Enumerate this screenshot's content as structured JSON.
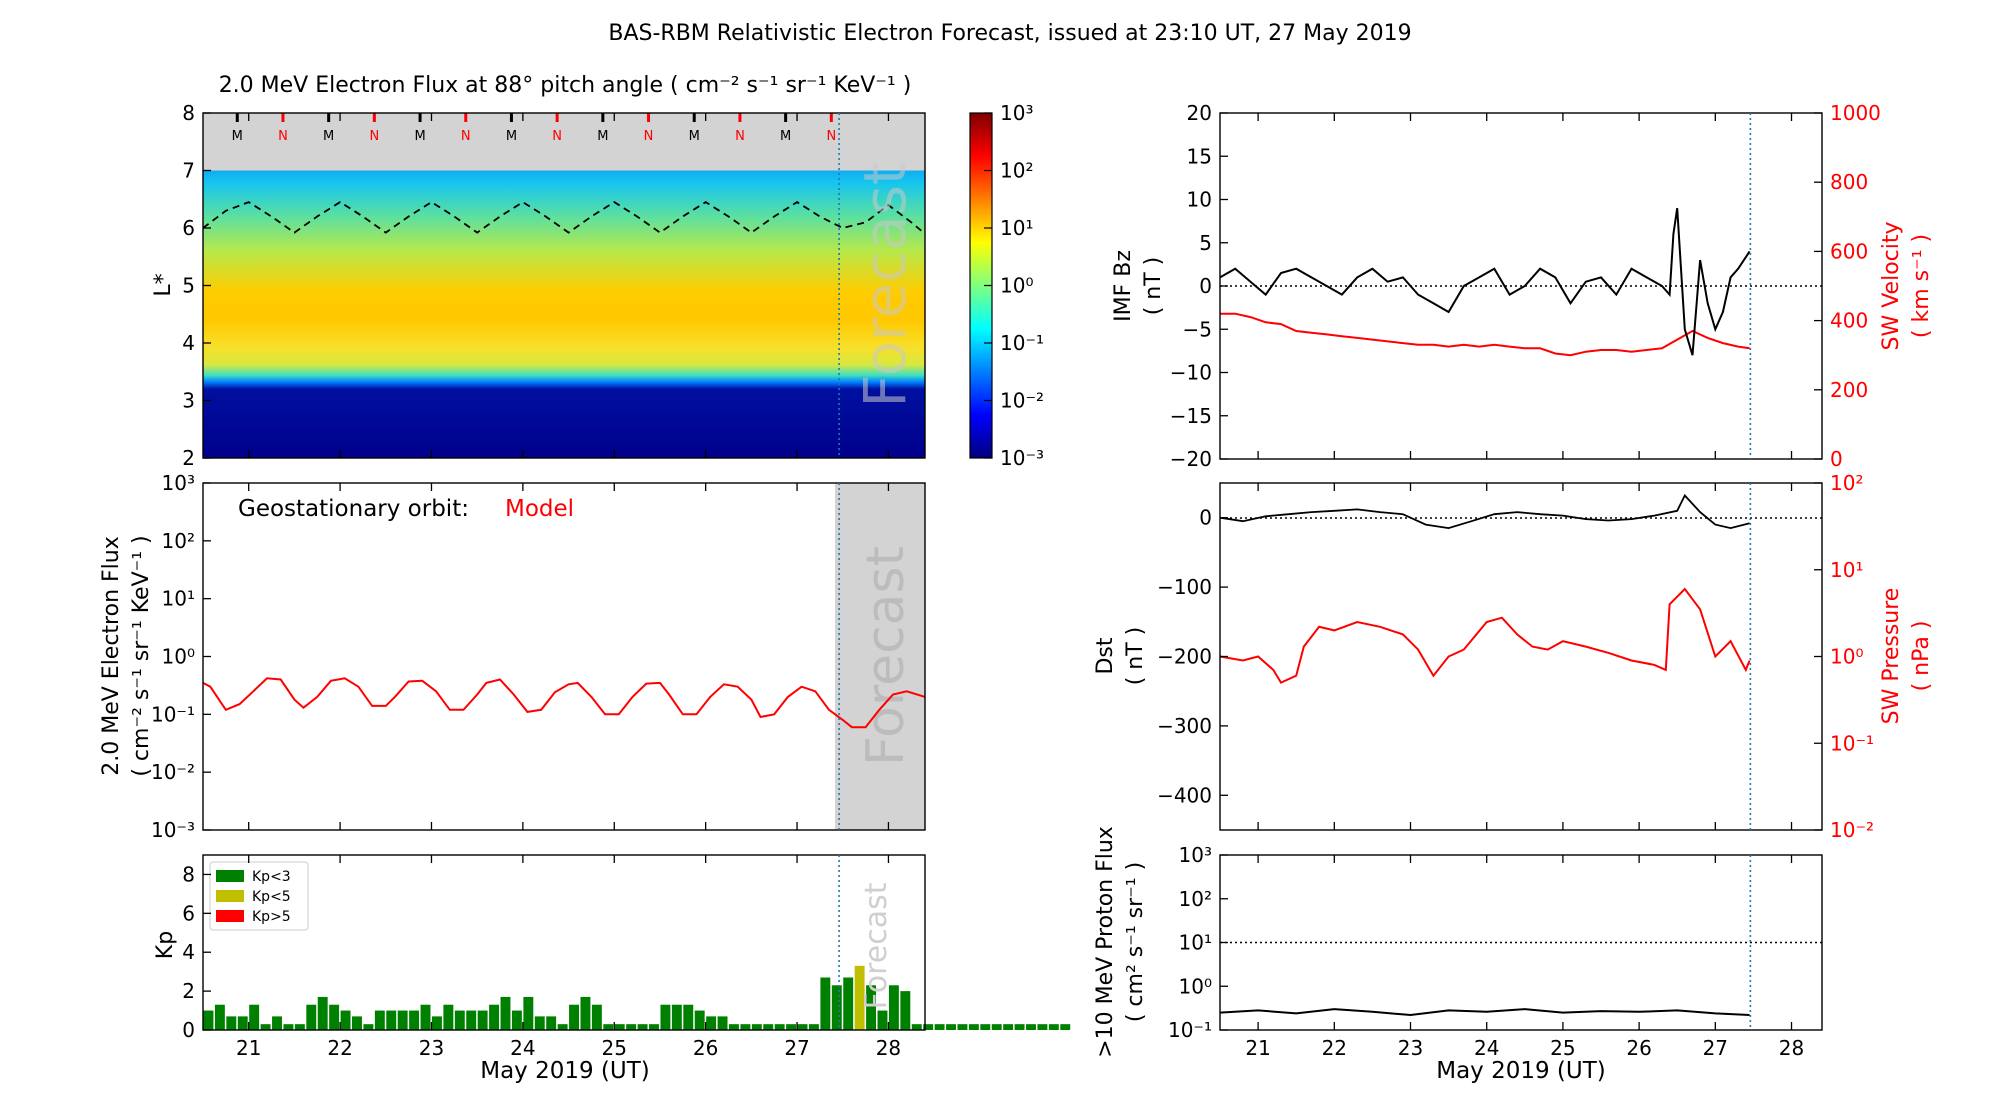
{
  "figure_title": "BAS-RBM Relativistic Electron Forecast, issued at 23:10 UT, 27 May 2019",
  "xaxis": {
    "tick_labels": [
      "21",
      "22",
      "23",
      "24",
      "25",
      "26",
      "27",
      "28"
    ],
    "label": "May 2019 (UT)"
  },
  "colors": {
    "model": "#ff0000",
    "kp_green": "#008000",
    "kp_yellow": "#bfbf00",
    "kp_red": "#ff0000",
    "forecast_shade": "#d3d3d3",
    "issue_line": "#1f77b4"
  },
  "chart_data": [
    {
      "id": "flux-map",
      "type": "heatmap",
      "title": "2.0 MeV Electron Flux at 88° pitch angle ( cm⁻² s⁻¹ sr⁻¹ KeV⁻¹ )",
      "ylabel": "L*",
      "ylim": [
        2,
        8
      ],
      "y_tick_labels": [
        "2",
        "3",
        "4",
        "5",
        "6",
        "7",
        "8"
      ],
      "colorbar": {
        "scale": "log",
        "range": [
          0.001,
          1000
        ],
        "tick_labels": [
          "10⁻³",
          "10⁻²",
          "10⁻¹",
          "10⁰",
          "10¹",
          "10²",
          "10³"
        ]
      },
      "forecast_label": "Forecast",
      "mn_markers": [
        "M",
        "N",
        "M",
        "N",
        "M",
        "N",
        "M",
        "N",
        "M",
        "N",
        "M",
        "N",
        "M",
        "N"
      ],
      "last_closed_drift_shell": {
        "x": [
          20.5,
          20.75,
          21.0,
          21.25,
          21.5,
          21.75,
          22.0,
          22.25,
          22.5,
          22.75,
          23.0,
          23.25,
          23.5,
          23.75,
          24.0,
          24.25,
          24.5,
          24.75,
          25.0,
          25.25,
          25.5,
          25.75,
          26.0,
          26.25,
          26.5,
          26.75,
          27.0,
          27.25,
          27.5,
          27.75,
          28.0,
          28.25,
          28.4
        ],
        "y": [
          6.0,
          6.3,
          6.45,
          6.2,
          5.92,
          6.2,
          6.45,
          6.2,
          5.92,
          6.2,
          6.45,
          6.2,
          5.92,
          6.2,
          6.45,
          6.2,
          5.92,
          6.2,
          6.45,
          6.2,
          5.92,
          6.2,
          6.45,
          6.2,
          5.92,
          6.2,
          6.45,
          6.2,
          6.0,
          6.1,
          6.4,
          6.1,
          5.9
        ]
      }
    },
    {
      "id": "geo-flux",
      "type": "line",
      "ylabel": "2.0 MeV Electron Flux ( cm⁻² s⁻¹ sr⁻¹ KeV⁻¹ )",
      "yscale": "log",
      "ylim": [
        0.001,
        1000
      ],
      "y_tick_labels": [
        "10⁻³",
        "10⁻²",
        "10⁻¹",
        "10⁰",
        "10¹",
        "10²",
        "10³"
      ],
      "annotation_text": "Geostationary orbit:",
      "annotation_model": "Model",
      "forecast_label": "Forecast",
      "series": [
        {
          "name": "Model",
          "x": [
            20.5,
            20.58,
            20.75,
            20.9,
            21.05,
            21.2,
            21.35,
            21.5,
            21.6,
            21.75,
            21.9,
            22.05,
            22.2,
            22.35,
            22.5,
            22.6,
            22.75,
            22.9,
            23.05,
            23.2,
            23.35,
            23.5,
            23.6,
            23.75,
            23.9,
            24.05,
            24.2,
            24.35,
            24.5,
            24.6,
            24.75,
            24.9,
            25.05,
            25.2,
            25.35,
            25.5,
            25.6,
            25.75,
            25.9,
            26.05,
            26.2,
            26.35,
            26.5,
            26.6,
            26.75,
            26.9,
            27.05,
            27.2,
            27.35,
            27.5,
            27.6,
            27.75,
            27.9,
            28.05,
            28.2,
            28.4
          ],
          "y": [
            0.35,
            0.3,
            0.12,
            0.15,
            0.25,
            0.42,
            0.4,
            0.18,
            0.13,
            0.2,
            0.38,
            0.42,
            0.3,
            0.14,
            0.14,
            0.2,
            0.37,
            0.38,
            0.25,
            0.12,
            0.12,
            0.22,
            0.35,
            0.4,
            0.22,
            0.11,
            0.12,
            0.24,
            0.33,
            0.35,
            0.2,
            0.1,
            0.1,
            0.2,
            0.34,
            0.35,
            0.22,
            0.1,
            0.1,
            0.2,
            0.33,
            0.3,
            0.18,
            0.09,
            0.1,
            0.2,
            0.3,
            0.25,
            0.12,
            0.08,
            0.06,
            0.06,
            0.12,
            0.22,
            0.25,
            0.2
          ]
        }
      ]
    },
    {
      "id": "kp",
      "type": "bar",
      "ylabel": "Kp",
      "ylim": [
        0,
        9
      ],
      "y_tick_labels": [
        "0",
        "2",
        "4",
        "6",
        "8"
      ],
      "legend": [
        "Kp<3",
        "Kp<5",
        "Kp>5"
      ],
      "legend_position": "top-left",
      "forecast_label": "Forecast",
      "bar_width_days": 0.125,
      "x_start": 20.5,
      "values": [
        1.0,
        1.3,
        0.7,
        0.7,
        1.3,
        0.3,
        0.7,
        0.3,
        0.3,
        1.3,
        1.7,
        1.3,
        1.0,
        0.7,
        0.3,
        1.0,
        1.0,
        1.0,
        1.0,
        1.3,
        0.7,
        1.3,
        1.0,
        1.0,
        1.0,
        1.3,
        1.7,
        1.0,
        1.7,
        0.7,
        0.7,
        0.3,
        1.3,
        1.7,
        1.3,
        0.3,
        0.3,
        0.3,
        0.3,
        0.3,
        1.3,
        1.3,
        1.3,
        1.0,
        0.7,
        0.7,
        0.3,
        0.3,
        0.3,
        0.3,
        0.3,
        0.3,
        0.3,
        0.3,
        2.7,
        2.3,
        2.7,
        3.3,
        2.3,
        1.0,
        2.3,
        2.0,
        0.3,
        0.3,
        0.3,
        0.3,
        0.3,
        0.3,
        0.3,
        0.3,
        0.3,
        0.3,
        0.3,
        0.3,
        0.3,
        0.3
      ]
    },
    {
      "id": "imf",
      "type": "line",
      "ylabel": "IMF Bz ( nT )",
      "ylim": [
        -20,
        20
      ],
      "y_tick_labels": [
        "−20",
        "−15",
        "−10",
        "−5",
        "0",
        "5",
        "10",
        "15",
        "20"
      ],
      "y2label": "SW Velocity ( km s⁻¹ )",
      "y2lim": [
        0,
        1000
      ],
      "y2_tick_labels": [
        "0",
        "200",
        "400",
        "600",
        "800",
        "1000"
      ],
      "series": [
        {
          "name": "",
          "axis": "left",
          "x": [
            20.5,
            20.7,
            20.9,
            21.1,
            21.3,
            21.5,
            21.7,
            21.9,
            22.1,
            22.3,
            22.5,
            22.7,
            22.9,
            23.1,
            23.3,
            23.5,
            23.7,
            23.9,
            24.1,
            24.3,
            24.5,
            24.7,
            24.9,
            25.1,
            25.3,
            25.5,
            25.7,
            25.9,
            26.1,
            26.3,
            26.4,
            26.45,
            26.5,
            26.6,
            26.7,
            26.8,
            26.9,
            27.0,
            27.1,
            27.2,
            27.3,
            27.45
          ],
          "y": [
            1,
            2,
            0.5,
            -1,
            1.5,
            2,
            1,
            0,
            -1,
            1,
            2,
            0.5,
            1,
            -1,
            -2,
            -3,
            0,
            1,
            2,
            -1,
            0,
            2,
            1,
            -2,
            0.5,
            1,
            -1,
            2,
            1,
            0,
            -1,
            6,
            9,
            -5,
            -8,
            3,
            -2,
            -5,
            -3,
            1,
            2,
            4
          ]
        },
        {
          "name": "",
          "axis": "right",
          "x": [
            20.5,
            20.7,
            20.9,
            21.1,
            21.3,
            21.5,
            21.7,
            21.9,
            22.1,
            22.3,
            22.5,
            22.7,
            22.9,
            23.1,
            23.3,
            23.5,
            23.7,
            23.9,
            24.1,
            24.3,
            24.5,
            24.7,
            24.9,
            25.1,
            25.3,
            25.5,
            25.7,
            25.9,
            26.1,
            26.3,
            26.5,
            26.7,
            26.9,
            27.1,
            27.3,
            27.45
          ],
          "y": [
            420,
            420,
            410,
            395,
            390,
            370,
            365,
            360,
            355,
            350,
            345,
            340,
            335,
            330,
            330,
            325,
            330,
            325,
            330,
            325,
            320,
            320,
            305,
            300,
            310,
            315,
            315,
            310,
            315,
            320,
            345,
            370,
            350,
            335,
            325,
            320
          ]
        }
      ]
    },
    {
      "id": "dst",
      "type": "line",
      "ylabel": "Dst ( nT )",
      "ylim": [
        -450,
        50
      ],
      "y_tick_labels": [
        "−400",
        "−300",
        "−200",
        "−100",
        "0"
      ],
      "y2label": "SW Pressure ( nPa )",
      "y2scale": "log",
      "y2lim": [
        0.01,
        100
      ],
      "y2_tick_labels": [
        "10⁻²",
        "10⁻¹",
        "10⁰",
        "10¹",
        "10²"
      ],
      "series": [
        {
          "name": "",
          "axis": "left",
          "x": [
            20.5,
            20.8,
            21.1,
            21.4,
            21.7,
            22.0,
            22.3,
            22.6,
            22.9,
            23.2,
            23.5,
            23.8,
            24.1,
            24.4,
            24.7,
            25.0,
            25.3,
            25.6,
            25.9,
            26.2,
            26.5,
            26.6,
            26.8,
            27.0,
            27.2,
            27.45
          ],
          "y": [
            0,
            -5,
            2,
            5,
            8,
            10,
            12,
            8,
            5,
            -10,
            -15,
            -5,
            5,
            8,
            5,
            3,
            -2,
            -4,
            -2,
            3,
            10,
            32,
            8,
            -10,
            -15,
            -8
          ]
        },
        {
          "name": "",
          "axis": "right",
          "x": [
            20.5,
            20.8,
            21.0,
            21.2,
            21.3,
            21.5,
            21.6,
            21.8,
            22.0,
            22.3,
            22.6,
            22.9,
            23.1,
            23.3,
            23.5,
            23.7,
            24.0,
            24.2,
            24.4,
            24.6,
            24.8,
            25.0,
            25.3,
            25.6,
            25.9,
            26.2,
            26.35,
            26.4,
            26.6,
            26.8,
            27.0,
            27.2,
            27.4,
            27.45
          ],
          "y": [
            1.0,
            0.9,
            1.0,
            0.7,
            0.5,
            0.6,
            1.3,
            2.2,
            2.0,
            2.5,
            2.2,
            1.8,
            1.2,
            0.6,
            1.0,
            1.2,
            2.5,
            2.8,
            1.8,
            1.3,
            1.2,
            1.5,
            1.3,
            1.1,
            0.9,
            0.8,
            0.7,
            4.0,
            6.0,
            3.5,
            1.0,
            1.5,
            0.7,
            0.9
          ]
        }
      ]
    },
    {
      "id": "proton",
      "type": "line",
      "ylabel": ">10 MeV Proton Flux ( cm² s⁻¹ sr⁻¹ )",
      "yscale": "log",
      "ylim": [
        0.1,
        1000
      ],
      "y_tick_labels": [
        "10⁻¹",
        "10⁰",
        "10¹",
        "10²",
        "10³"
      ],
      "threshold": 10,
      "series": [
        {
          "name": "",
          "x": [
            20.5,
            21.0,
            21.5,
            22.0,
            22.5,
            23.0,
            23.5,
            24.0,
            24.5,
            25.0,
            25.5,
            26.0,
            26.5,
            27.0,
            27.45
          ],
          "y": [
            0.25,
            0.28,
            0.24,
            0.3,
            0.26,
            0.22,
            0.28,
            0.26,
            0.3,
            0.25,
            0.27,
            0.26,
            0.28,
            0.24,
            0.22
          ]
        }
      ]
    }
  ]
}
